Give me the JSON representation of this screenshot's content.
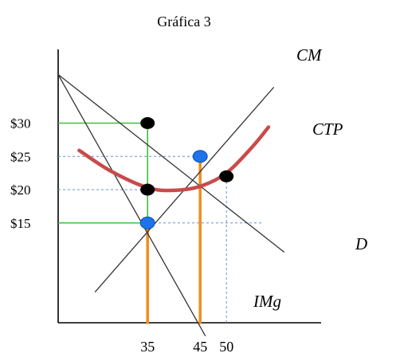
{
  "chart_data": {
    "type": "line",
    "title": "Gráfica 3",
    "xlabel": "",
    "ylabel": "",
    "x_ticks": [
      "35",
      "45",
      "50"
    ],
    "y_ticks": [
      "$30",
      "$25",
      "$20",
      "$15"
    ],
    "x_tick_values": [
      35,
      45,
      50
    ],
    "y_tick_values": [
      30,
      25,
      20,
      15
    ],
    "xlim": [
      18,
      68
    ],
    "ylim": [
      0,
      40
    ],
    "grid": false,
    "series": [
      {
        "name": "D",
        "x": [
          18,
          61
        ],
        "y": [
          37.3,
          10.6
        ]
      },
      {
        "name": "IMg",
        "x": [
          18,
          46
        ],
        "y": [
          37.3,
          -2.0
        ]
      },
      {
        "name": "CM",
        "x": [
          25,
          59
        ],
        "y": [
          4.6,
          35.4
        ]
      },
      {
        "name": "CTP",
        "x": [
          22,
          28,
          35,
          40,
          45,
          50,
          55,
          58
        ],
        "y": [
          25.9,
          22.8,
          20.3,
          19.9,
          20.5,
          22.5,
          26.5,
          29.4
        ]
      }
    ],
    "points": [
      {
        "x": 35,
        "y": 30,
        "color": "#000000"
      },
      {
        "x": 35,
        "y": 20,
        "color": "#000000"
      },
      {
        "x": 50,
        "y": 22,
        "color": "#000000"
      },
      {
        "x": 45,
        "y": 25,
        "color": "#1e73e8"
      },
      {
        "x": 35,
        "y": 15,
        "color": "#1e73e8"
      }
    ],
    "guides": [
      {
        "kind": "h",
        "y": 30,
        "x0": 18,
        "x1": 35,
        "color": "#3fbf3f"
      },
      {
        "kind": "h",
        "y": 15,
        "x0": 18,
        "x1": 35,
        "color": "#3fbf3f"
      },
      {
        "kind": "v",
        "x": 35,
        "y0": 15,
        "y1": 30,
        "color": "#3fbf3f"
      },
      {
        "kind": "h",
        "y": 30,
        "x0": 18,
        "x1": 35,
        "color": "#6a8fd0",
        "dashed": true
      },
      {
        "kind": "h",
        "y": 25,
        "x0": 18,
        "x1": 45,
        "color": "#6a8fd0",
        "dashed": true
      },
      {
        "kind": "h",
        "y": 20,
        "x0": 18,
        "x1": 35,
        "color": "#6a8fd0",
        "dashed": true
      },
      {
        "kind": "h",
        "y": 15,
        "x0": 18,
        "x1": 57,
        "color": "#6a8fd0",
        "dashed": true
      },
      {
        "kind": "v",
        "x": 50,
        "y0": 0,
        "y1": 22,
        "color": "#6a8fd0",
        "dashed": true
      },
      {
        "kind": "v",
        "x": 35,
        "y0": 0,
        "y1": 15,
        "color": "#f28c1a"
      },
      {
        "kind": "v",
        "x": 45,
        "y0": 0,
        "y1": 25,
        "color": "#f28c1a"
      }
    ],
    "colors": {
      "axis": "#000000",
      "lines": "#333333",
      "ctp": "#c94a4a",
      "green": "#3fbf3f",
      "orange": "#f28c1a",
      "dash": "#6a8fd0",
      "blue_point": "#1e73e8",
      "black_point": "#000000"
    }
  }
}
